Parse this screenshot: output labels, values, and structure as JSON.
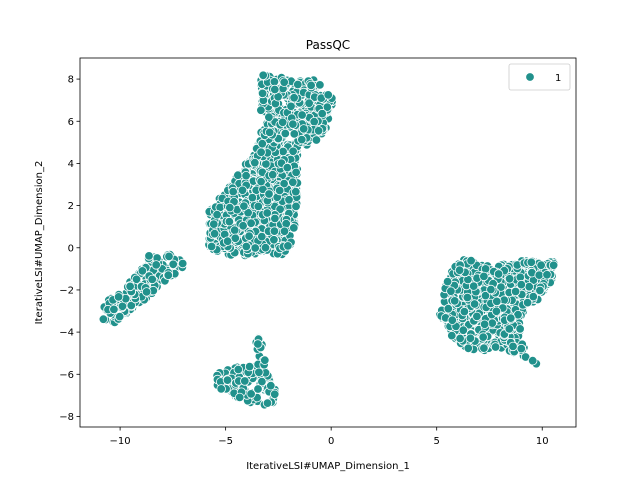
{
  "chart_data": {
    "type": "scatter",
    "title": "PassQC",
    "xlabel": "IterativeLSI#UMAP_Dimension_1",
    "ylabel": "IterativeLSI#UMAP_Dimension_2",
    "xlim": [
      -11.9,
      11.6
    ],
    "ylim": [
      -8.5,
      9.0
    ],
    "xticks": [
      -10,
      -5,
      0,
      5,
      10
    ],
    "xtick_labels": [
      "−10",
      "−5",
      "0",
      "5",
      "10"
    ],
    "yticks": [
      -8,
      -6,
      -4,
      -2,
      0,
      2,
      4,
      6,
      8
    ],
    "ytick_labels": [
      "−8",
      "−6",
      "−4",
      "−2",
      "0",
      "2",
      "4",
      "6",
      "8"
    ],
    "grid": false,
    "legend_position": "top-right",
    "series": [
      {
        "name": "1",
        "color": "#21918c",
        "edge_color": "#ffffff",
        "clusters": [
          {
            "region": "left tail",
            "x_range": [
              -10.8,
              -6.8
            ],
            "y_range": [
              -3.6,
              -0.3
            ],
            "approx_points": 180
          },
          {
            "region": "central body",
            "x_range": [
              -5.8,
              -1.6
            ],
            "y_range": [
              -0.4,
              5.0
            ],
            "approx_points": 900
          },
          {
            "region": "upper lobe",
            "x_range": [
              -3.6,
              0.1
            ],
            "y_range": [
              4.8,
              8.3
            ],
            "approx_points": 350
          },
          {
            "region": "bottom island",
            "x_range": [
              -5.5,
              -2.6
            ],
            "y_range": [
              -7.5,
              -4.0
            ],
            "approx_points": 160
          },
          {
            "region": "right cluster",
            "x_range": [
              5.1,
              10.6
            ],
            "y_range": [
              -5.6,
              -0.5
            ],
            "approx_points": 700
          }
        ]
      }
    ]
  }
}
